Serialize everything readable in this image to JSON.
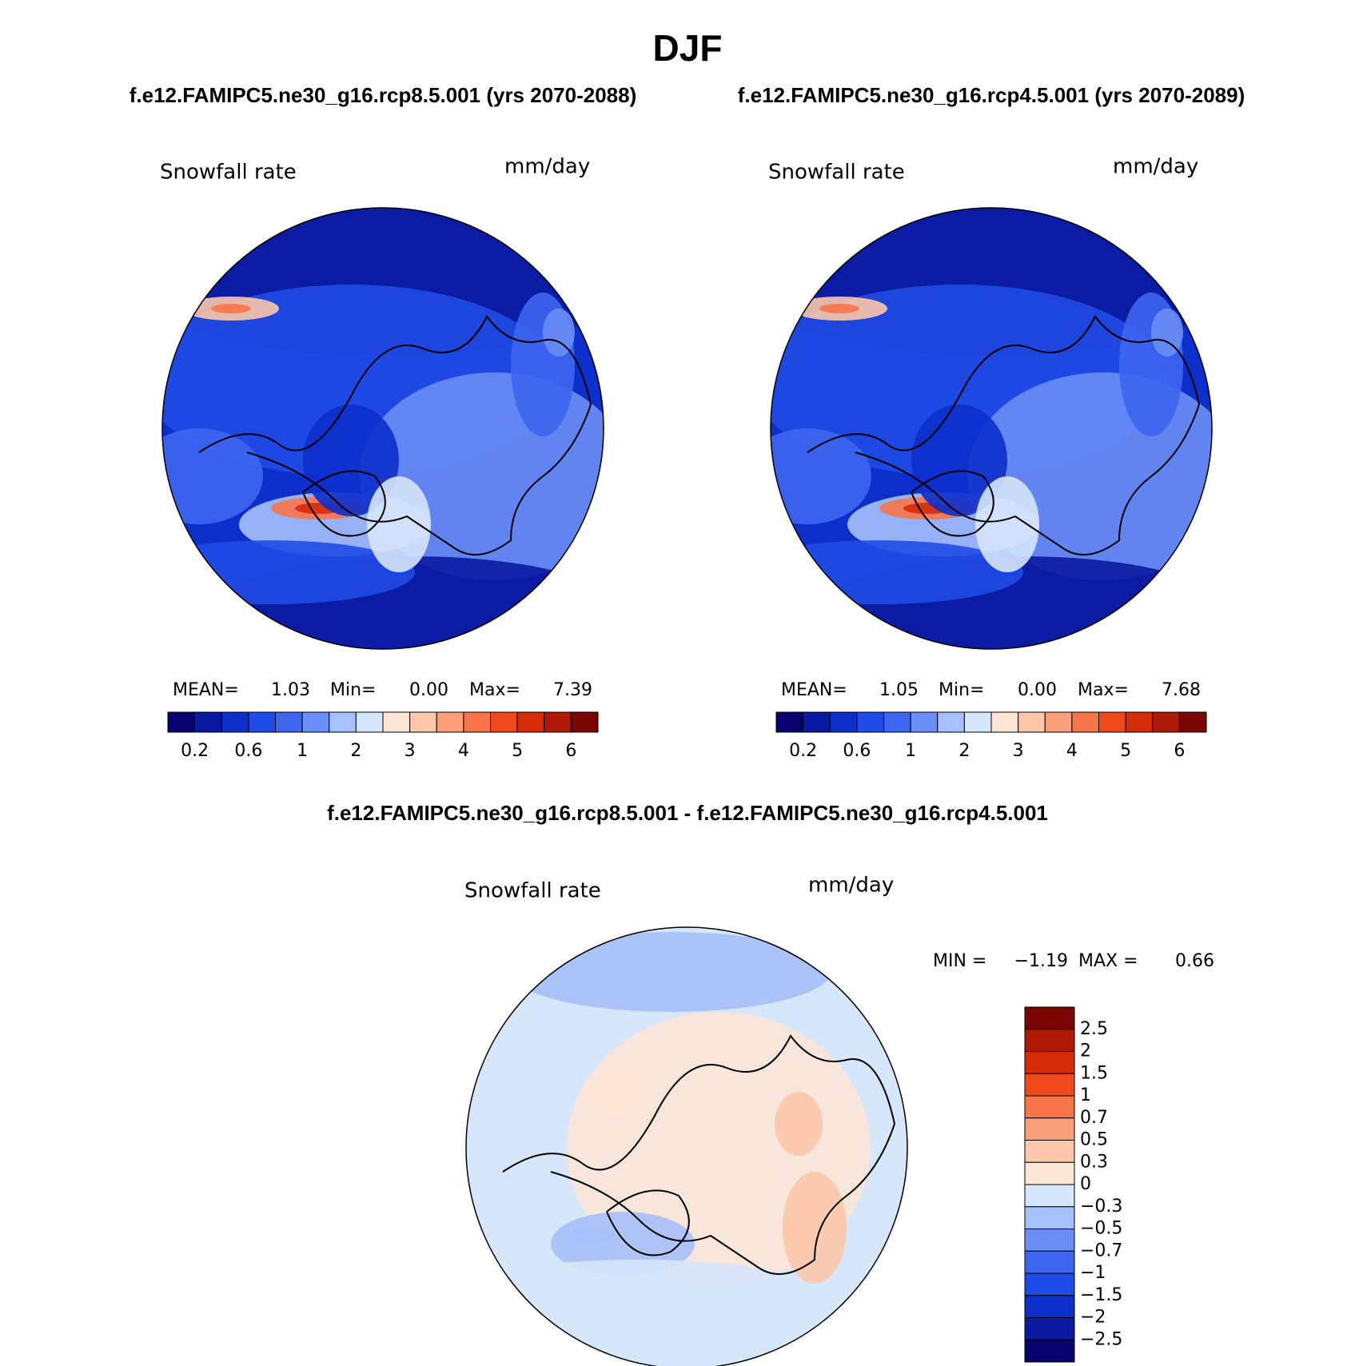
{
  "title": "DJF",
  "panels": [
    {
      "subtitle": "f.e12.FAMIPC5.ne30_g16.rcp8.5.001 (yrs 2070-2088)",
      "variable": "Snowfall rate",
      "units": "mm/day",
      "stats": [
        {
          "label": "MEAN=",
          "value": "1.03"
        },
        {
          "label": "Min=",
          "value": "0.00"
        },
        {
          "label": "Max=",
          "value": "7.39"
        }
      ],
      "colorbar": {
        "labels": [
          "0.2",
          "0.6",
          "1",
          "2",
          "3",
          "4",
          "5",
          "6"
        ]
      }
    },
    {
      "subtitle": "f.e12.FAMIPC5.ne30_g16.rcp4.5.001 (yrs 2070-2089)",
      "variable": "Snowfall rate",
      "units": "mm/day",
      "stats": [
        {
          "label": "MEAN=",
          "value": "1.05"
        },
        {
          "label": "Min=",
          "value": "0.00"
        },
        {
          "label": "Max=",
          "value": "7.68"
        }
      ],
      "colorbar": {
        "labels": [
          "0.2",
          "0.6",
          "1",
          "2",
          "3",
          "4",
          "5",
          "6"
        ]
      }
    }
  ],
  "difference": {
    "subtitle": "f.e12.FAMIPC5.ne30_g16.rcp8.5.001 - f.e12.FAMIPC5.ne30_g16.rcp4.5.001",
    "variable": "Snowfall rate",
    "units": "mm/day",
    "stats": [
      {
        "label": "MIN =",
        "value": "−1.19"
      },
      {
        "label": "MAX =",
        "value": "0.66"
      }
    ],
    "colorbar": {
      "labels": [
        "2.5",
        "2",
        "1.5",
        "1",
        "0.7",
        "0.5",
        "0.3",
        "0",
        "−0.3",
        "−0.5",
        "−0.7",
        "−1",
        "−1.5",
        "−2",
        "−2.5"
      ]
    }
  },
  "colors": [
    "#08006e",
    "#0a1aa0",
    "#0c2fcc",
    "#1f4be6",
    "#3d66f0",
    "#6a8ef5",
    "#a5c0fa",
    "#d6e6fb",
    "#fde6d6",
    "#fcc7aa",
    "#fba07a",
    "#f8754a",
    "#f04a1c",
    "#d52c08",
    "#ad1a08",
    "#7a0604"
  ]
}
